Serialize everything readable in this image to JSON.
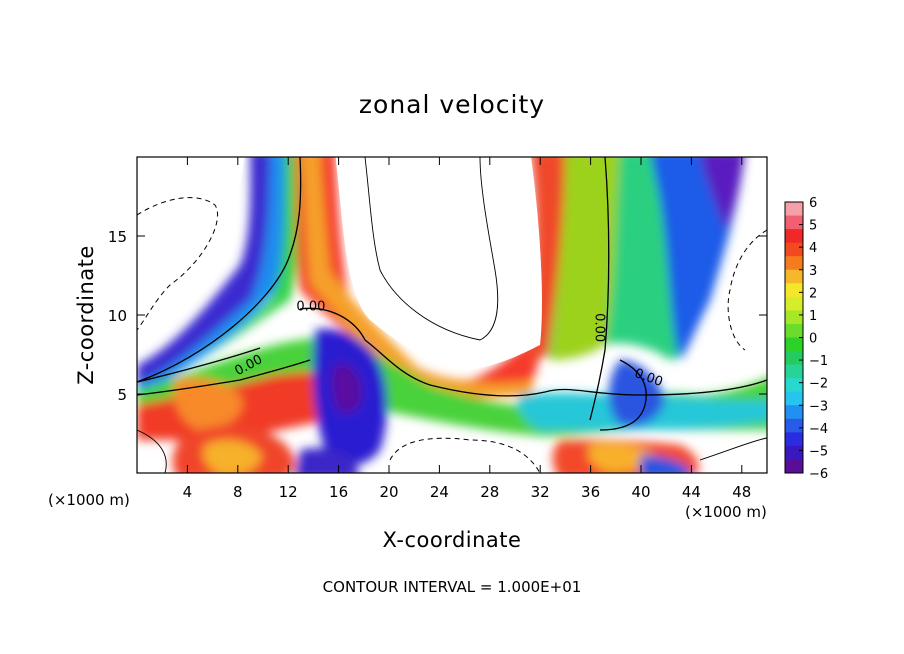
{
  "chart_data": {
    "type": "heatmap",
    "title": "zonal velocity",
    "xlabel": "X-coordinate",
    "ylabel": "Z-coordinate",
    "x_unit_left": "(×1000 m)",
    "x_unit_right": "(×1000 m)",
    "xlim": [
      0,
      50
    ],
    "ylim": [
      0,
      20
    ],
    "x_ticks": [
      4,
      8,
      12,
      16,
      20,
      24,
      28,
      32,
      36,
      40,
      44,
      48
    ],
    "y_ticks": [
      5,
      10,
      15
    ],
    "colorbar": {
      "min": -6,
      "max": 6,
      "tick_labels": [
        "6",
        "5",
        "4",
        "3",
        "2",
        "1",
        "0",
        "−1",
        "−2",
        "−3",
        "−4",
        "−5",
        "−6"
      ]
    },
    "contour_labels": [
      {
        "text": "0.00",
        "x": 13.8,
        "y": 10.3,
        "rotate": 0
      },
      {
        "text": "0.00",
        "x": 9.0,
        "y": 6.6,
        "rotate": -28
      },
      {
        "text": "0.00",
        "x": 36.4,
        "y": 9.2,
        "rotate": 90
      },
      {
        "text": "0.00",
        "x": 40.5,
        "y": 5.8,
        "rotate": 20
      }
    ],
    "footer": "CONTOUR INTERVAL = 1.000E+01",
    "grid": false
  }
}
